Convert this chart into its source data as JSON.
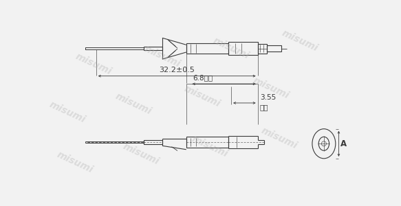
{
  "bg_color": "#f2f2f2",
  "lc": "#3a3a3a",
  "wm_color": "#b0b0b0",
  "wm_alpha": 0.35,
  "dim_32": "32.2±0.5",
  "dim_68": "6.8参考",
  "dim_355_a": "3.55",
  "dim_355_b": "参考",
  "dim_A": "A",
  "lw": 0.8,
  "tlw": 0.45,
  "dlw": 0.6
}
